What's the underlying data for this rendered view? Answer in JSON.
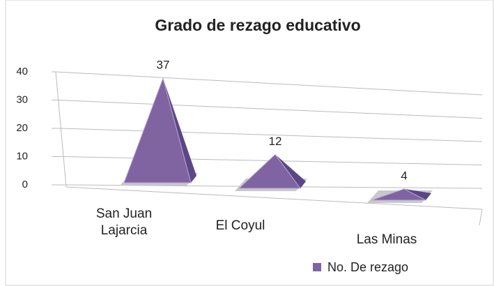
{
  "chart_data": {
    "type": "pyramid3d",
    "title": "Grado de rezago educativo",
    "categories": [
      "San Juan Lajarcia",
      "El Coyul",
      "Las Minas"
    ],
    "series": [
      {
        "name": "No. De rezago",
        "color": "#8064a2",
        "values": [
          37,
          12,
          4
        ]
      }
    ],
    "ylim": [
      0,
      40
    ],
    "yticks": [
      0,
      10,
      20,
      30,
      40
    ],
    "grid": true,
    "legend": "bottom-right"
  }
}
